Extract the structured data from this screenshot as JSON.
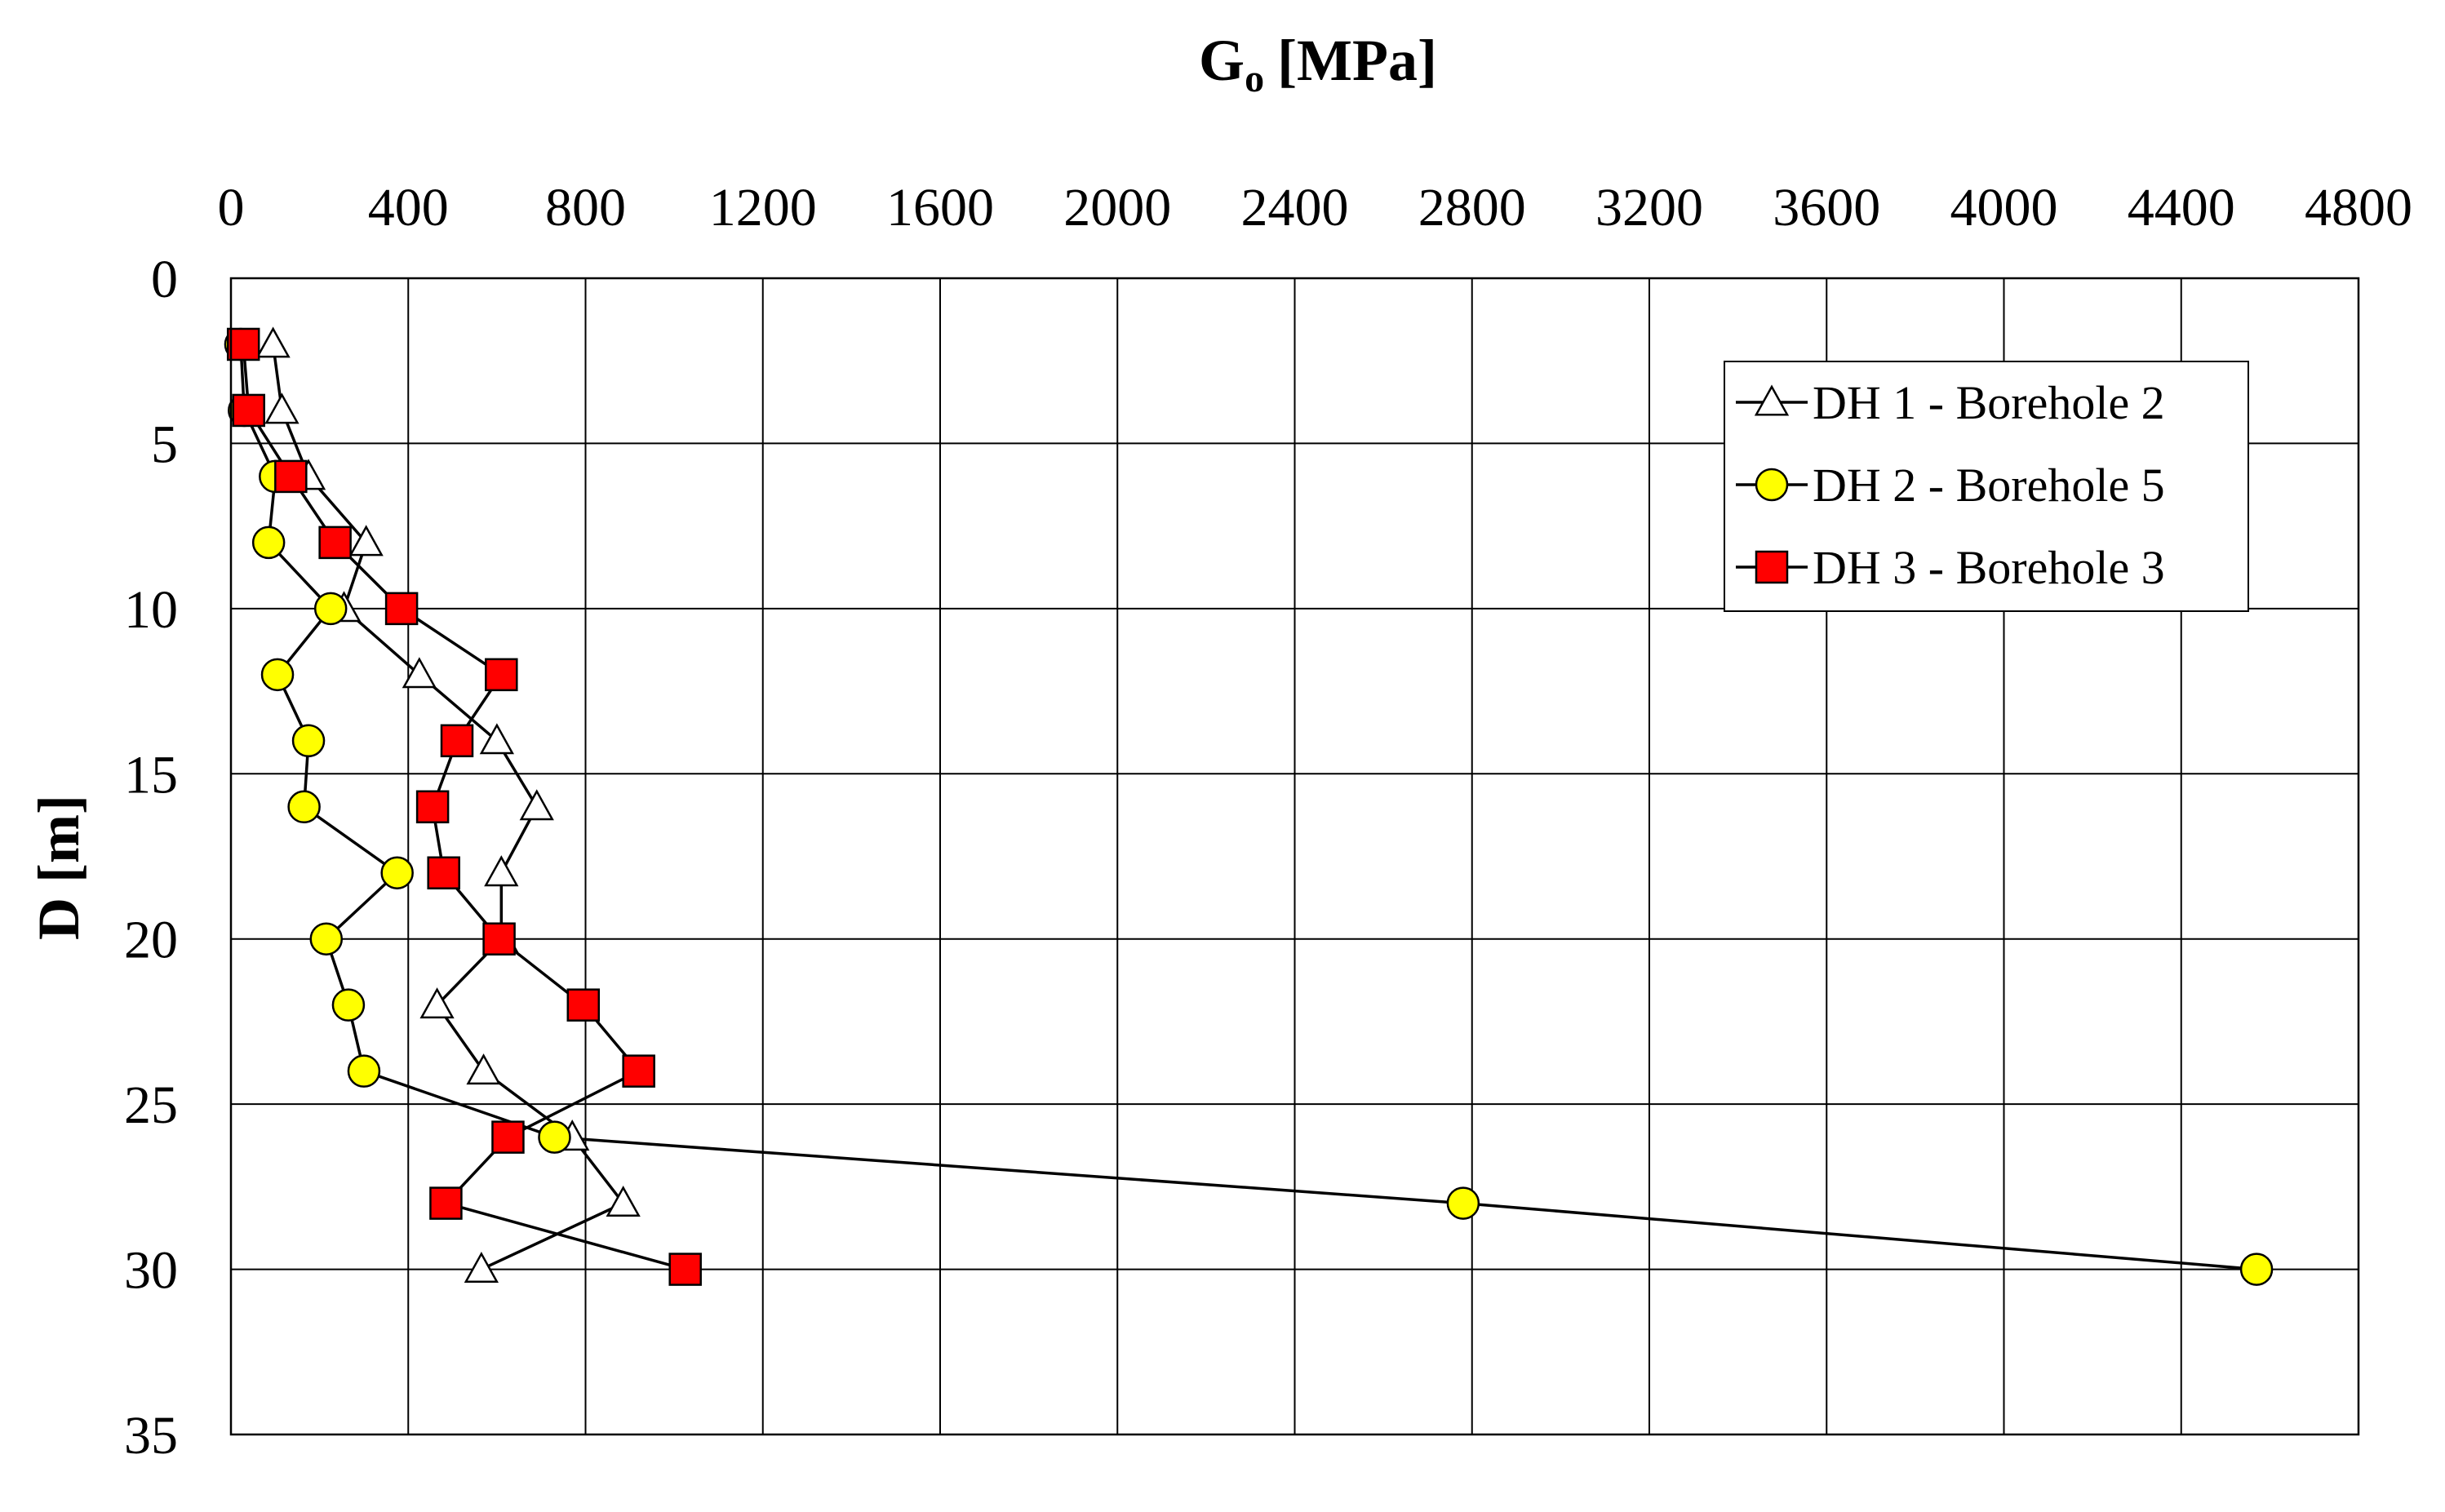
{
  "chart_data": {
    "type": "line",
    "title": "",
    "xlabel": "G",
    "xlabel_subscript": "o",
    "xlabel_unit": "[MPa]",
    "ylabel": "D [m]",
    "x_axis_position": "top",
    "y_axis_inverted": true,
    "xlim": [
      0,
      4800
    ],
    "ylim": [
      0,
      35
    ],
    "x_ticks": [
      0,
      400,
      800,
      1200,
      1600,
      2000,
      2400,
      2800,
      3200,
      3600,
      4000,
      4400,
      4800
    ],
    "y_ticks": [
      0,
      5,
      10,
      15,
      20,
      25,
      30,
      35
    ],
    "x_tick_labels": [
      "0",
      "400",
      "800",
      "1200",
      "1600",
      "2000",
      "2400",
      "2800",
      "3200",
      "3600",
      "4000",
      "4400",
      "4800"
    ],
    "y_tick_labels": [
      "0",
      "5",
      "10",
      "15",
      "20",
      "25",
      "30",
      "35"
    ],
    "grid": true,
    "legend_position": "top-right",
    "series": [
      {
        "name": "DH 1 - Borehole 2",
        "marker": "triangle",
        "marker_fill": "#ffffff",
        "points": [
          {
            "x": 95,
            "y": 2
          },
          {
            "x": 115,
            "y": 4
          },
          {
            "x": 175,
            "y": 6
          },
          {
            "x": 305,
            "y": 8
          },
          {
            "x": 255,
            "y": 10
          },
          {
            "x": 425,
            "y": 12
          },
          {
            "x": 600,
            "y": 14
          },
          {
            "x": 690,
            "y": 16
          },
          {
            "x": 610,
            "y": 18
          },
          {
            "x": 610,
            "y": 20
          },
          {
            "x": 465,
            "y": 22
          },
          {
            "x": 570,
            "y": 24
          },
          {
            "x": 770,
            "y": 26
          },
          {
            "x": 885,
            "y": 28
          },
          {
            "x": 565,
            "y": 30
          }
        ]
      },
      {
        "name": "DH 2 - Borehole 5",
        "marker": "circle",
        "marker_fill": "#ffff00",
        "points": [
          {
            "x": 22,
            "y": 2
          },
          {
            "x": 30,
            "y": 4
          },
          {
            "x": 100,
            "y": 6
          },
          {
            "x": 85,
            "y": 8
          },
          {
            "x": 225,
            "y": 10
          },
          {
            "x": 105,
            "y": 12
          },
          {
            "x": 175,
            "y": 14
          },
          {
            "x": 165,
            "y": 16
          },
          {
            "x": 375,
            "y": 18
          },
          {
            "x": 215,
            "y": 20
          },
          {
            "x": 265,
            "y": 22
          },
          {
            "x": 300,
            "y": 24
          },
          {
            "x": 730,
            "y": 26
          },
          {
            "x": 2780,
            "y": 28
          },
          {
            "x": 4570,
            "y": 30
          }
        ]
      },
      {
        "name": "DH 3 - Borehole 3",
        "marker": "square",
        "marker_fill": "#ff0000",
        "points": [
          {
            "x": 28,
            "y": 2
          },
          {
            "x": 40,
            "y": 4
          },
          {
            "x": 135,
            "y": 6
          },
          {
            "x": 235,
            "y": 8
          },
          {
            "x": 385,
            "y": 10
          },
          {
            "x": 610,
            "y": 12
          },
          {
            "x": 510,
            "y": 14
          },
          {
            "x": 455,
            "y": 16
          },
          {
            "x": 480,
            "y": 18
          },
          {
            "x": 605,
            "y": 20
          },
          {
            "x": 795,
            "y": 22
          },
          {
            "x": 920,
            "y": 24
          },
          {
            "x": 625,
            "y": 26
          },
          {
            "x": 485,
            "y": 28
          },
          {
            "x": 1025,
            "y": 30
          }
        ]
      }
    ]
  }
}
